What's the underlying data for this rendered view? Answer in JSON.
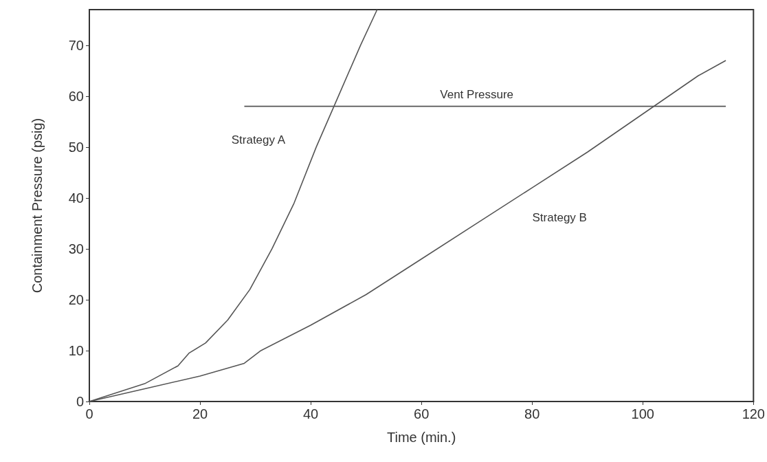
{
  "chart_data": {
    "type": "line",
    "xlabel": "Time (min.)",
    "ylabel": "Containment Pressure (psig)",
    "xlim": [
      0,
      120
    ],
    "ylim": [
      0,
      77
    ],
    "xticks": [
      0,
      20,
      40,
      60,
      80,
      100,
      120
    ],
    "yticks": [
      0,
      10,
      20,
      30,
      40,
      50,
      60,
      70
    ],
    "grid": false,
    "legend": false,
    "marker": "none",
    "line_style": "solid",
    "series": [
      {
        "name": "Strategy A",
        "color": "#555555",
        "x": [
          0,
          10,
          16,
          18,
          21,
          25,
          29,
          33,
          37,
          41,
          45,
          49,
          52
        ],
        "values": [
          0,
          3.5,
          7,
          9.5,
          11.5,
          16,
          22,
          30,
          39,
          50,
          60,
          70,
          77
        ]
      },
      {
        "name": "Strategy B",
        "color": "#555555",
        "x": [
          0,
          10,
          20,
          28,
          31,
          40,
          50,
          60,
          70,
          80,
          90,
          100,
          110,
          115
        ],
        "values": [
          0,
          2.5,
          5,
          7.5,
          10,
          15,
          21,
          28,
          35,
          42,
          49,
          56.5,
          64,
          67
        ]
      },
      {
        "name": "Vent Pressure",
        "color": "#555555",
        "x": [
          28,
          70,
          115
        ],
        "values": [
          58,
          58,
          58
        ]
      }
    ]
  }
}
